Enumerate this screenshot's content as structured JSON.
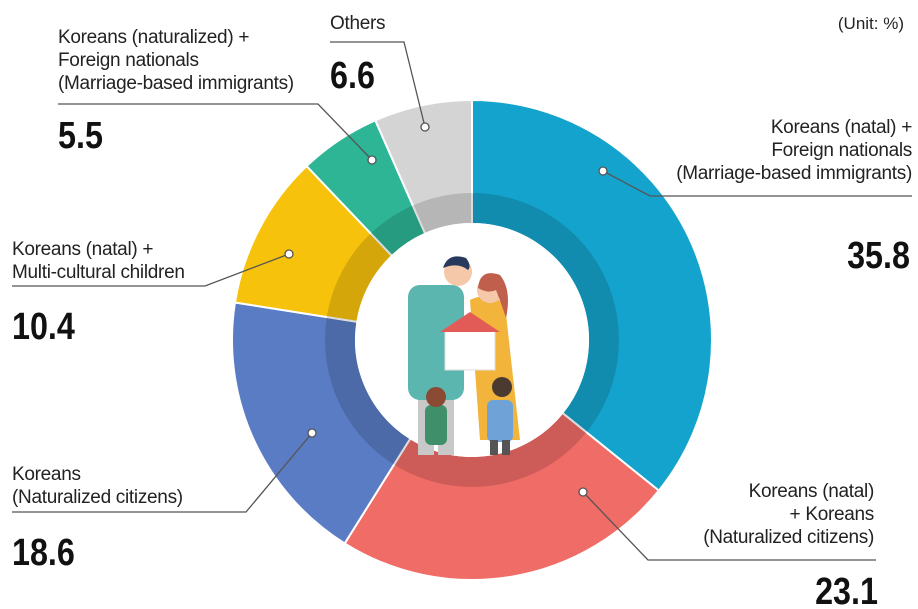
{
  "chart_data": {
    "type": "donut",
    "unit": "(Unit: %)",
    "categories": [
      "Koreans (natal) +\nForeign nationals\n(Marriage-based immigrants)",
      "Koreans (natal)\n+ Koreans\n(Naturalized citizens)",
      "Koreans\n(Naturalized citizens)",
      "Koreans (natal) +\nMulti-cultural children",
      "Koreans (naturalized) +\nForeign nationals\n(Marriage-based immigrants)",
      "Others"
    ],
    "values": [
      35.8,
      23.1,
      18.6,
      10.4,
      5.5,
      6.6
    ],
    "colors": [
      "#14a3cc",
      "#ef6c67",
      "#5a7cc4",
      "#f7c20c",
      "#2db596",
      "#d4d4d4"
    ]
  }
}
